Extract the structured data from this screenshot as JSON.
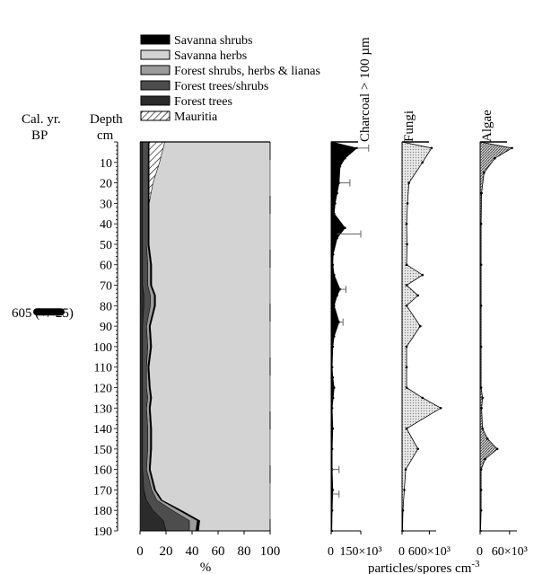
{
  "chart_data": [
    {
      "type": "area",
      "subtype": "stacked-percent",
      "xlabel": "%",
      "xlim": [
        0,
        100
      ],
      "xticks": [
        "0",
        "20",
        "40",
        "60",
        "80",
        "100"
      ],
      "ylabel": "Depth",
      "yunit": "cm",
      "ylim": [
        0,
        190
      ],
      "yticks": [
        "10",
        "20",
        "30",
        "40",
        "50",
        "60",
        "70",
        "80",
        "90",
        "100",
        "110",
        "120",
        "130",
        "140",
        "150",
        "160",
        "170",
        "180",
        "190"
      ],
      "legend": [
        {
          "label": "Savanna shrubs",
          "color": "#000000"
        },
        {
          "label": "Savanna herbs",
          "color": "#d3d3d3"
        },
        {
          "label": "Forest shrubs, herbs & lianas",
          "color": "#9c9c9c"
        },
        {
          "label": "Forest trees/shrubs",
          "color": "#4d4d4d"
        },
        {
          "label": "Forest trees",
          "color": "#2b2b2b"
        },
        {
          "label": "Mauritia",
          "color": "#ffffff",
          "pattern": "hatch"
        }
      ],
      "depth": [
        3,
        10,
        20,
        30,
        40,
        50,
        60,
        70,
        75,
        80,
        90,
        100,
        110,
        120,
        125,
        130,
        140,
        150,
        160,
        170,
        175,
        180,
        185,
        190
      ],
      "series": [
        {
          "name": "Forest trees",
          "values": [
            2,
            2,
            2,
            2,
            2,
            2,
            2,
            2,
            3,
            3,
            2,
            2,
            2,
            2,
            2,
            2,
            2,
            2,
            2,
            3,
            5,
            10,
            18,
            20
          ]
        },
        {
          "name": "Forest trees/shrubs",
          "values": [
            3,
            3,
            3,
            3,
            3,
            3,
            4,
            4,
            5,
            5,
            3,
            4,
            3,
            3,
            4,
            3,
            4,
            4,
            3,
            6,
            8,
            15,
            20,
            18
          ]
        },
        {
          "name": "Forest shrubs, herbs & lianas",
          "values": [
            1,
            1,
            1,
            1,
            1,
            1,
            2,
            2,
            3,
            3,
            2,
            2,
            1,
            2,
            2,
            2,
            2,
            2,
            2,
            2,
            3,
            5,
            6,
            5
          ]
        },
        {
          "name": "Savanna shrubs",
          "values": [
            1,
            1,
            1,
            1,
            1,
            1,
            1,
            1,
            1,
            1,
            1,
            1,
            1,
            1,
            1,
            1,
            1,
            1,
            1,
            1,
            1,
            2,
            2,
            2
          ]
        },
        {
          "name": "Mauritia",
          "values": [
            12,
            8,
            3,
            0,
            0,
            0,
            0,
            0,
            0,
            0,
            0,
            0,
            0,
            0,
            0,
            0,
            0,
            0,
            0,
            0,
            0,
            0,
            0,
            0
          ]
        },
        {
          "name": "Savanna herbs",
          "values": [
            81,
            85,
            90,
            93,
            93,
            93,
            91,
            91,
            88,
            88,
            92,
            91,
            93,
            92,
            91,
            92,
            91,
            91,
            92,
            88,
            83,
            68,
            54,
            55
          ]
        }
      ]
    },
    {
      "type": "area",
      "name": "Charcoal > 100 µm",
      "xticks": [
        "0",
        "150×10³"
      ],
      "xlim": [
        0,
        150000
      ],
      "depth": [
        3,
        8,
        12,
        20,
        25,
        30,
        35,
        42,
        47,
        55,
        60,
        65,
        72,
        75,
        80,
        88,
        95,
        100,
        110,
        115,
        120,
        125,
        130,
        140,
        150,
        160,
        170,
        180,
        190
      ],
      "values": [
        130000,
        70000,
        45000,
        40000,
        30000,
        20000,
        15000,
        70000,
        30000,
        10000,
        8000,
        15000,
        45000,
        30000,
        15000,
        40000,
        15000,
        8000,
        5000,
        8000,
        15000,
        10000,
        5000,
        8000,
        5000,
        5000,
        8000,
        5000,
        3000
      ],
      "error_bars": [
        {
          "depth": 3,
          "high": 190000
        },
        {
          "depth": 20,
          "high": 95000
        },
        {
          "depth": 45,
          "high": 150000
        },
        {
          "depth": 72,
          "high": 75000
        },
        {
          "depth": 88,
          "high": 60000
        },
        {
          "depth": 160,
          "high": 40000
        },
        {
          "depth": 172,
          "high": 40000
        }
      ]
    },
    {
      "type": "area",
      "name": "Fungi",
      "xticks": [
        "0",
        "600×10³"
      ],
      "xlim": [
        0,
        750000
      ],
      "depth": [
        3,
        10,
        20,
        30,
        40,
        50,
        60,
        65,
        70,
        75,
        80,
        90,
        100,
        110,
        120,
        125,
        130,
        140,
        150,
        160,
        170,
        180,
        190
      ],
      "values": [
        650000,
        450000,
        150000,
        120000,
        100000,
        110000,
        100000,
        450000,
        100000,
        350000,
        100000,
        400000,
        100000,
        100000,
        100000,
        450000,
        850000,
        100000,
        350000,
        80000,
        50000,
        20000,
        10000
      ]
    },
    {
      "type": "area",
      "name": "Algae",
      "xticks": [
        "0",
        "60×10³"
      ],
      "xlim": [
        0,
        75000
      ],
      "depth": [
        3,
        8,
        15,
        25,
        40,
        60,
        80,
        100,
        120,
        125,
        130,
        140,
        145,
        150,
        155,
        160,
        170,
        180,
        190
      ],
      "values": [
        65000,
        30000,
        8000,
        3000,
        2000,
        2000,
        2000,
        2000,
        2000,
        5000,
        3000,
        5000,
        15000,
        35000,
        10000,
        2000,
        2000,
        2000,
        1000
      ]
    }
  ],
  "xlabel_shared": "particles/spores cm",
  "xlabel_shared_sup": "-3",
  "cal_yr_label": "Cal. yr.",
  "bp_label": "BP",
  "depth_label": "Depth",
  "cm_label": "cm",
  "date_label": "605 (+/-25)",
  "date_depth": 83
}
